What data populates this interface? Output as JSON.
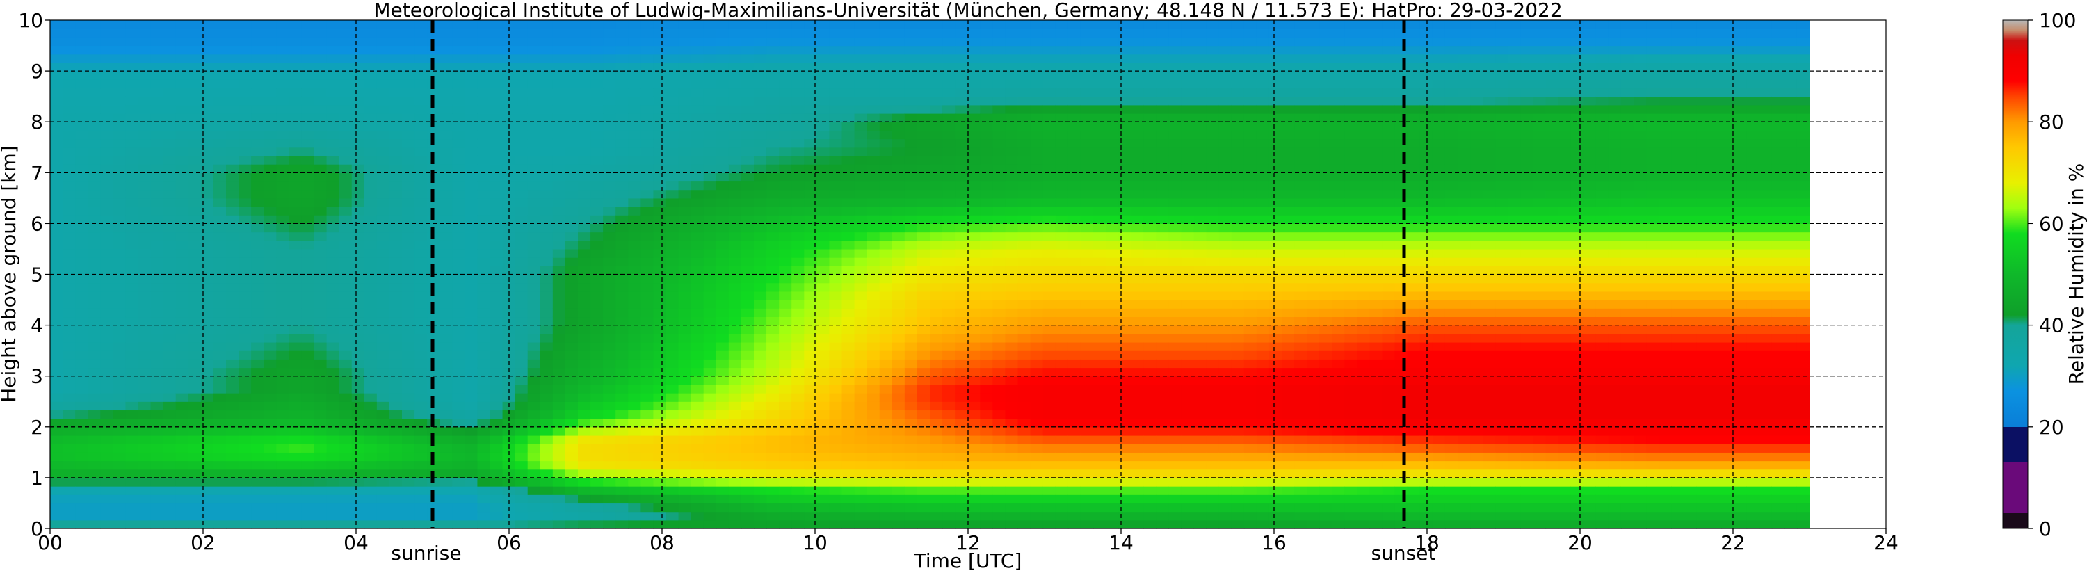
{
  "chart_data": {
    "type": "heatmap",
    "title": "Meteorological Institute of Ludwig-Maximilians-Universität (München, Germany; 48.148 N / 11.573 E):    HatPro: 29-03-2022",
    "xlabel": "Time [UTC]",
    "ylabel": "Height above ground [km]",
    "xlim": [
      0,
      24
    ],
    "ylim": [
      0,
      10
    ],
    "x_ticks": [
      "00",
      "02",
      "04",
      "06",
      "08",
      "10",
      "12",
      "14",
      "16",
      "18",
      "20",
      "22",
      "24"
    ],
    "y_ticks": [
      "0",
      "1",
      "2",
      "3",
      "4",
      "5",
      "6",
      "7",
      "8",
      "9",
      "10"
    ],
    "grid": true,
    "data_end_time": 23.0,
    "colorbar": {
      "label": "Relative Humidity in %",
      "range": [
        0,
        100
      ],
      "ticks": [
        "0",
        "20",
        "40",
        "60",
        "80",
        "100"
      ]
    },
    "annotations": [
      {
        "label": "sunrise",
        "time": 5.0
      },
      {
        "label": "sunset",
        "time": 17.7
      }
    ],
    "profile_heights_km": [
      0,
      0.25,
      0.5,
      0.75,
      1.0,
      1.25,
      1.5,
      1.75,
      2.0,
      2.25,
      2.5,
      2.75,
      3.0,
      3.5,
      4.0,
      4.5,
      5.0,
      5.5,
      6.0,
      6.5,
      7.0,
      7.5,
      8.0,
      8.5,
      9.0,
      9.5,
      10.0
    ],
    "profiles": [
      {
        "time": 0.0,
        "rh": [
          44,
          30,
          30,
          32,
          46,
          50,
          52,
          50,
          46,
          40,
          36,
          34,
          34,
          34,
          34,
          34,
          34,
          34,
          34,
          34,
          34,
          34,
          34,
          33,
          32,
          26,
          24
        ]
      },
      {
        "time": 3.3,
        "rh": [
          44,
          30,
          30,
          32,
          46,
          54,
          60,
          58,
          52,
          48,
          46,
          44,
          44,
          42,
          40,
          40,
          40,
          40,
          42,
          44,
          44,
          40,
          36,
          34,
          32,
          26,
          24
        ]
      },
      {
        "time": 5.5,
        "rh": [
          44,
          30,
          30,
          32,
          44,
          48,
          50,
          46,
          40,
          36,
          34,
          34,
          34,
          34,
          34,
          34,
          34,
          34,
          34,
          34,
          34,
          34,
          34,
          33,
          32,
          26,
          24
        ]
      },
      {
        "time": 7.0,
        "rh": [
          44,
          36,
          38,
          50,
          62,
          70,
          72,
          70,
          62,
          56,
          52,
          50,
          48,
          46,
          44,
          44,
          44,
          42,
          40,
          38,
          36,
          34,
          34,
          33,
          32,
          26,
          24
        ]
      },
      {
        "time": 9.5,
        "rh": [
          42,
          46,
          52,
          58,
          68,
          74,
          76,
          76,
          74,
          72,
          70,
          68,
          66,
          64,
          62,
          60,
          58,
          56,
          52,
          46,
          42,
          40,
          38,
          36,
          34,
          28,
          24
        ]
      },
      {
        "time": 11.5,
        "rh": [
          42,
          48,
          54,
          60,
          70,
          76,
          78,
          80,
          82,
          84,
          86,
          86,
          84,
          80,
          76,
          74,
          70,
          66,
          58,
          48,
          44,
          42,
          44,
          36,
          34,
          28,
          24
        ]
      },
      {
        "time": 13.0,
        "rh": [
          42,
          48,
          54,
          60,
          70,
          76,
          80,
          84,
          88,
          90,
          90,
          90,
          88,
          84,
          80,
          76,
          72,
          68,
          60,
          50,
          46,
          46,
          48,
          38,
          34,
          28,
          24
        ]
      },
      {
        "time": 15.5,
        "rh": [
          42,
          48,
          54,
          60,
          70,
          76,
          80,
          84,
          88,
          90,
          90,
          90,
          88,
          84,
          80,
          76,
          72,
          66,
          58,
          50,
          46,
          46,
          48,
          38,
          34,
          28,
          24
        ]
      },
      {
        "time": 18.0,
        "rh": [
          44,
          50,
          54,
          58,
          68,
          76,
          82,
          86,
          90,
          92,
          92,
          92,
          90,
          88,
          84,
          78,
          72,
          66,
          58,
          50,
          46,
          46,
          48,
          38,
          34,
          28,
          24
        ]
      },
      {
        "time": 21.0,
        "rh": [
          44,
          50,
          54,
          58,
          68,
          78,
          84,
          88,
          90,
          92,
          92,
          92,
          90,
          88,
          84,
          78,
          72,
          66,
          58,
          52,
          48,
          48,
          50,
          40,
          36,
          28,
          24
        ]
      },
      {
        "time": 23.0,
        "rh": [
          44,
          50,
          54,
          58,
          68,
          78,
          84,
          88,
          90,
          92,
          92,
          92,
          90,
          88,
          84,
          78,
          72,
          66,
          58,
          52,
          48,
          48,
          50,
          40,
          36,
          28,
          24
        ]
      }
    ],
    "colormap": [
      {
        "v": 0,
        "c": "#1a0a1a"
      },
      {
        "v": 3,
        "c": "#1a0a1a"
      },
      {
        "v": 3,
        "c": "#6a0a7a"
      },
      {
        "v": 13,
        "c": "#6a0a7a"
      },
      {
        "v": 13,
        "c": "#0b1063"
      },
      {
        "v": 20,
        "c": "#0b1063"
      },
      {
        "v": 20,
        "c": "#0a7ed8"
      },
      {
        "v": 27,
        "c": "#0b92e0"
      },
      {
        "v": 32,
        "c": "#0fa6b0"
      },
      {
        "v": 40,
        "c": "#14a599"
      },
      {
        "v": 42,
        "c": "#0f9f2a"
      },
      {
        "v": 50,
        "c": "#0fb82a"
      },
      {
        "v": 58,
        "c": "#10dc20"
      },
      {
        "v": 63,
        "c": "#9fff10"
      },
      {
        "v": 68,
        "c": "#e8f000"
      },
      {
        "v": 75,
        "c": "#ffc800"
      },
      {
        "v": 80,
        "c": "#ff9a00"
      },
      {
        "v": 85,
        "c": "#ff4400"
      },
      {
        "v": 88,
        "c": "#ff0000"
      },
      {
        "v": 93,
        "c": "#f00000"
      },
      {
        "v": 96,
        "c": "#cc1111"
      },
      {
        "v": 98,
        "c": "#c68c6c"
      },
      {
        "v": 100,
        "c": "#b8b8b8"
      }
    ]
  }
}
